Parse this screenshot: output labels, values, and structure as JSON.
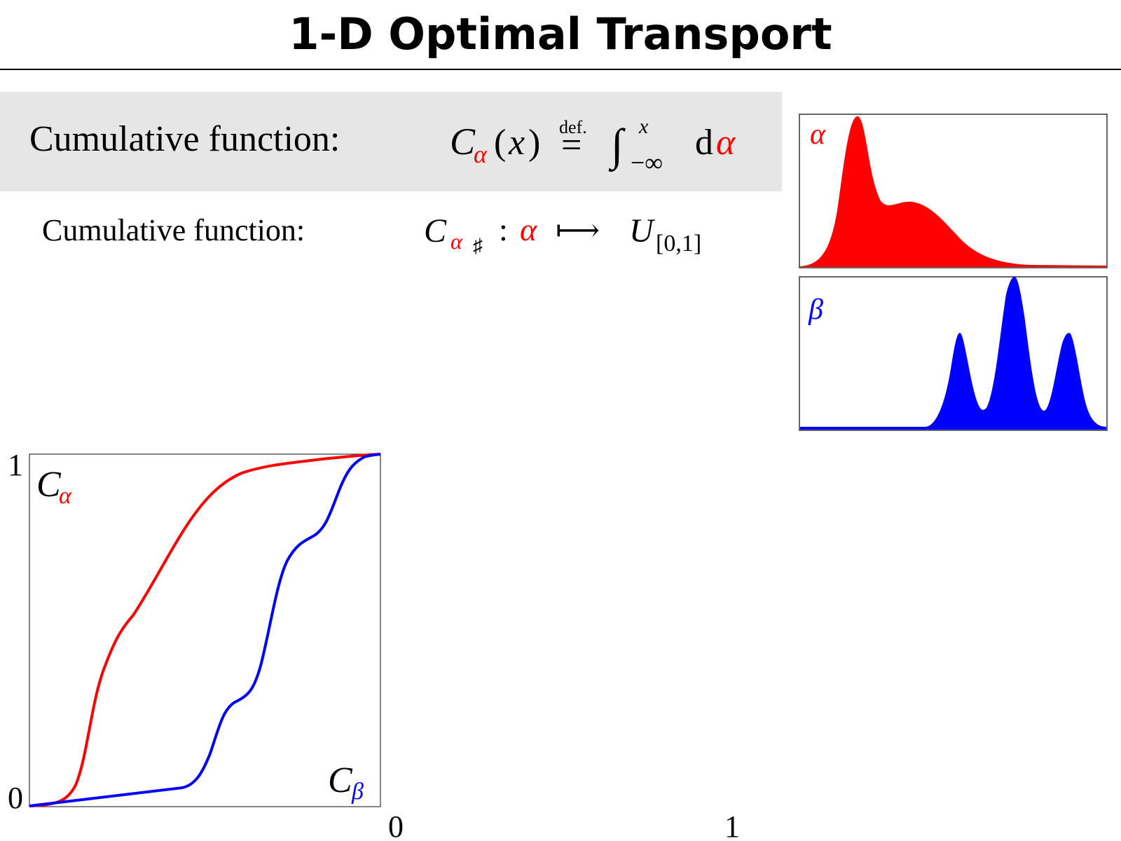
{
  "header": {
    "title": "1-D Optimal Transport"
  },
  "definition": {
    "label": "Cumulative function:",
    "formula": [
      "C",
      "α",
      "(",
      "x",
      ")",
      "def.",
      "=",
      "∫",
      "x",
      "−∞",
      "d",
      "α"
    ]
  },
  "mapping": {
    "label": "Cumulative function:",
    "formula": [
      "C",
      "α",
      "♯",
      ":",
      "α",
      "⟼",
      "U",
      "[0,1]"
    ]
  },
  "density_plots": [
    {
      "label": "α"
    },
    {
      "label": "β"
    }
  ],
  "cdf_plot": {
    "labels": [
      {
        "symbol": "C",
        "sub": "α"
      },
      {
        "symbol": "C",
        "sub": "β"
      }
    ],
    "y_tick_labels": [
      "1",
      "0"
    ],
    "x_tick_labels": [
      "0",
      "1"
    ]
  }
}
